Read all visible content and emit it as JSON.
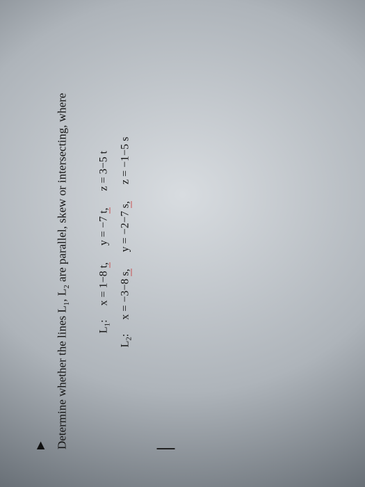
{
  "cursor_glyph": "▶",
  "prompt": {
    "lead": "Determine whether the lines L",
    "sub1": "1",
    "mid": ", L",
    "sub2": "2",
    "tail": " are parallel, skew or intersecting, where"
  },
  "lines": {
    "L1": {
      "label_text": "L",
      "label_sub": "1",
      "colon": ":",
      "x_lhs": "x = 1−8 ",
      "x_param": "t,",
      "y_lhs": "y = −7 ",
      "y_param": "t,",
      "z": "z = 3−5 t"
    },
    "L2": {
      "label_text": "L",
      "label_sub": "2",
      "colon": ":",
      "x_lhs": "x = −3−8 ",
      "x_param": "s,",
      "y_lhs": "y = −2−7 ",
      "y_param": "s,",
      "z": "z = −1−5 s"
    }
  },
  "colors": {
    "text": "#151515",
    "underline": "#c94f4f",
    "bg_center": "#d8dce0",
    "bg_edge": "#3e444a"
  }
}
